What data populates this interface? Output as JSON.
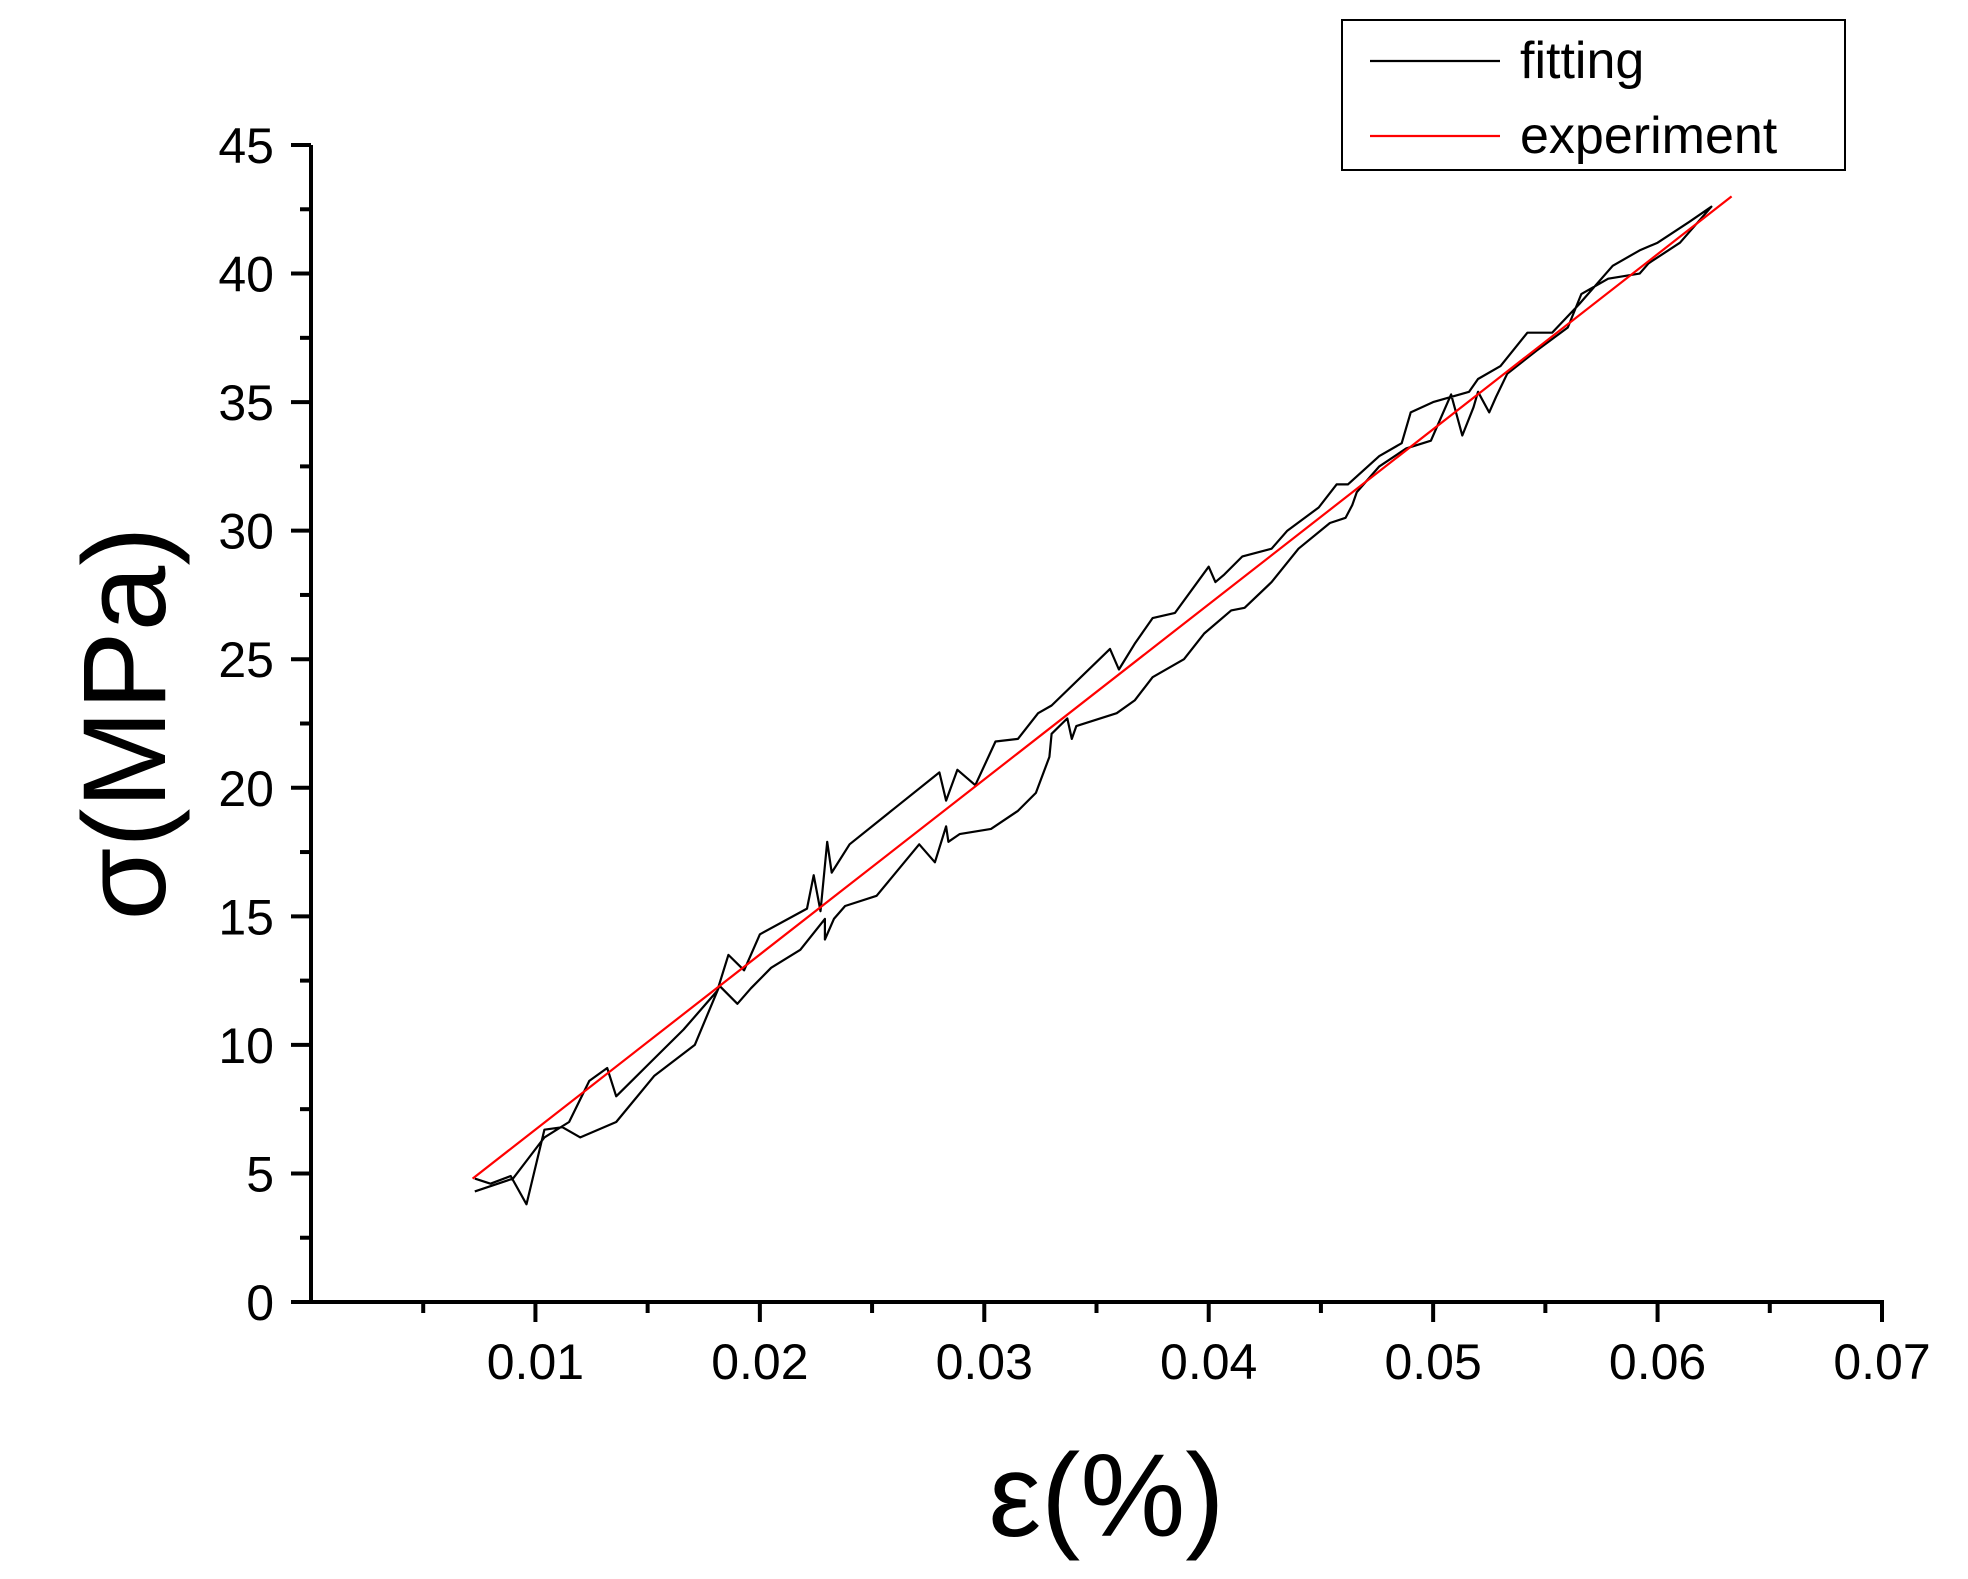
{
  "chart_data": {
    "type": "line",
    "xlabel": "ε(%)",
    "ylabel": "σ(MPa)",
    "xlim": [
      0.0,
      0.07
    ],
    "ylim": [
      0,
      45
    ],
    "xticks": [
      0.01,
      0.02,
      0.03,
      0.04,
      0.05,
      0.06,
      0.07
    ],
    "xtick_labels": [
      "0.01",
      "0.02",
      "0.03",
      "0.04",
      "0.05",
      "0.06",
      "0.07"
    ],
    "yticks": [
      0,
      5,
      10,
      15,
      20,
      25,
      30,
      35,
      40,
      45
    ],
    "ytick_labels": [
      "0",
      "5",
      "10",
      "15",
      "20",
      "25",
      "30",
      "35",
      "40",
      "45"
    ],
    "grid": false,
    "legend_position": "top-right",
    "series": [
      {
        "name": "fitting",
        "color": "#000000",
        "x": [
          0.0073,
          0.009,
          0.0097,
          0.0104,
          0.0115,
          0.0124,
          0.0132,
          0.0136,
          0.0151,
          0.0166,
          0.0181,
          0.0186,
          0.0193,
          0.02,
          0.0221,
          0.0224,
          0.0227,
          0.023,
          0.0232,
          0.024,
          0.026,
          0.028,
          0.0283,
          0.0288,
          0.0296,
          0.0305,
          0.0315,
          0.0324,
          0.033,
          0.0356,
          0.036,
          0.0367,
          0.0375,
          0.0385,
          0.04,
          0.0403,
          0.0407,
          0.0415,
          0.0428,
          0.0435,
          0.0449,
          0.0457,
          0.0462,
          0.0476,
          0.0486,
          0.049,
          0.05,
          0.0516,
          0.052,
          0.053,
          0.0542,
          0.0553,
          0.0565,
          0.058,
          0.0592,
          0.06,
          0.0614,
          0.0624,
          0.061,
          0.0596,
          0.0592,
          0.0578,
          0.0566,
          0.056,
          0.0546,
          0.0533,
          0.0528,
          0.0525,
          0.052,
          0.0518,
          0.0513,
          0.0508,
          0.0499,
          0.0488,
          0.0476,
          0.0466,
          0.0464,
          0.0461,
          0.0454,
          0.044,
          0.0428,
          0.0416,
          0.041,
          0.0398,
          0.0389,
          0.0375,
          0.0367,
          0.0359,
          0.0341,
          0.0339,
          0.0337,
          0.033,
          0.0329,
          0.0323,
          0.0315,
          0.0303,
          0.0289,
          0.0284,
          0.0283,
          0.0278,
          0.0271,
          0.0252,
          0.0238,
          0.0233,
          0.0229,
          0.0229,
          0.0218,
          0.0205,
          0.0196,
          0.019,
          0.0182,
          0.0171,
          0.0153,
          0.0136,
          0.012,
          0.0112,
          0.0104,
          0.0096,
          0.0089,
          0.008,
          0.0073
        ],
        "y": [
          4.3,
          4.8,
          5.6,
          6.4,
          7.0,
          8.6,
          9.1,
          8.0,
          9.3,
          10.6,
          12.1,
          13.5,
          12.9,
          14.3,
          15.3,
          16.6,
          15.2,
          17.9,
          16.7,
          17.8,
          19.2,
          20.6,
          19.5,
          20.7,
          20.1,
          21.8,
          21.9,
          22.9,
          23.2,
          25.4,
          24.6,
          25.6,
          26.6,
          26.8,
          28.6,
          28.0,
          28.3,
          29.0,
          29.3,
          30.0,
          30.9,
          31.8,
          31.8,
          32.9,
          33.4,
          34.6,
          35.0,
          35.4,
          35.9,
          36.4,
          37.7,
          37.7,
          38.8,
          40.3,
          40.9,
          41.2,
          42.0,
          42.6,
          41.2,
          40.4,
          40.0,
          39.8,
          39.2,
          37.9,
          37.0,
          36.1,
          35.2,
          34.6,
          35.4,
          34.8,
          33.7,
          35.3,
          33.5,
          33.2,
          32.5,
          31.5,
          31.0,
          30.5,
          30.3,
          29.3,
          28.0,
          27.0,
          26.9,
          26.0,
          25.0,
          24.3,
          23.4,
          22.9,
          22.4,
          21.9,
          22.7,
          22.1,
          21.2,
          19.8,
          19.1,
          18.4,
          18.2,
          17.9,
          18.5,
          17.1,
          17.8,
          15.8,
          15.4,
          14.9,
          14.1,
          14.9,
          13.7,
          13.0,
          12.2,
          11.6,
          12.3,
          10.0,
          8.8,
          7.0,
          6.4,
          6.8,
          6.7,
          3.8,
          4.9,
          4.6,
          4.8
        ]
      },
      {
        "name": "experiment",
        "color": "#ff0000",
        "x": [
          0.0072,
          0.0633
        ],
        "y": [
          4.8,
          43.0
        ]
      }
    ]
  }
}
